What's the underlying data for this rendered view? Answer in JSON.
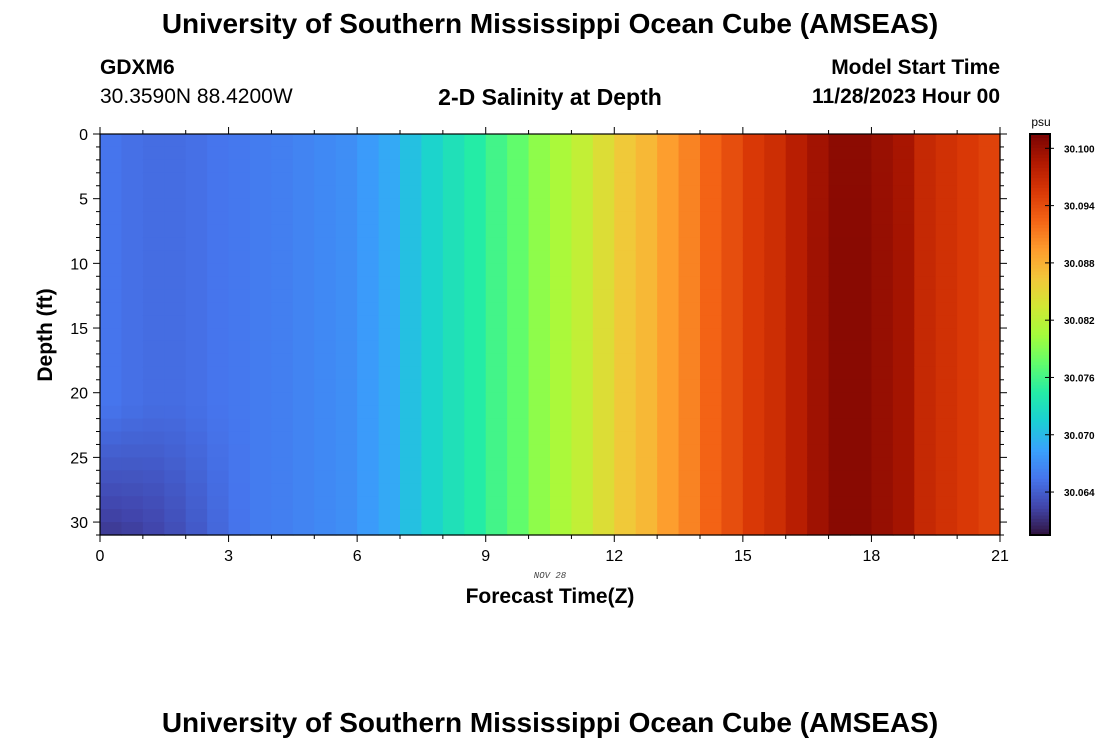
{
  "header": {
    "title": "University of Southern Mississippi Ocean Cube (AMSEAS)",
    "station": "GDXM6",
    "coordinates": "30.3590N  88.4200W",
    "subtitle": "2-D Salinity at Depth",
    "start_label": "Model Start Time",
    "start_value": "11/28/2023 Hour 00"
  },
  "footer": {
    "title": "University of Southern Mississippi Ocean Cube (AMSEAS)"
  },
  "chart_data": {
    "type": "heatmap",
    "xlabel": "Forecast Time(Z)",
    "ylabel": "Depth (ft)",
    "date_label": "NOV 28",
    "xlim": [
      0,
      21
    ],
    "ylim": [
      0,
      31
    ],
    "y_inverted": true,
    "xticks": [
      0,
      3,
      6,
      9,
      12,
      15,
      18,
      21
    ],
    "yticks": [
      0,
      5,
      10,
      15,
      20,
      25,
      30
    ],
    "x": [
      0.25,
      0.75,
      1.25,
      1.75,
      2.25,
      2.75,
      3.25,
      3.75,
      4.25,
      4.75,
      5.25,
      5.75,
      6.25,
      6.75,
      7.25,
      7.75,
      8.25,
      8.75,
      9.25,
      9.75,
      10.25,
      10.75,
      11.25,
      11.75,
      12.25,
      12.75,
      13.25,
      13.75,
      14.25,
      14.75,
      15.25,
      15.75,
      16.25,
      16.75,
      17.25,
      17.75,
      18.25,
      18.75,
      19.25,
      19.75,
      20.25,
      20.75
    ],
    "surface_salinity": [
      30.0655,
      30.0652,
      30.065,
      30.065,
      30.0652,
      30.0655,
      30.0657,
      30.066,
      30.0662,
      30.0665,
      30.0668,
      30.0672,
      30.068,
      30.069,
      30.0705,
      30.072,
      30.0733,
      30.0745,
      30.076,
      30.0775,
      30.0795,
      30.081,
      30.0825,
      30.0845,
      30.0862,
      30.0875,
      30.0893,
      30.0908,
      30.0925,
      30.094,
      30.0955,
      30.0965,
      30.098,
      30.0993,
      30.1005,
      30.1005,
      30.0998,
      30.099,
      30.097,
      30.0962,
      30.0955,
      30.0948
    ],
    "near_bottom_offset": {
      "depth_start": 21,
      "depth_end": 31,
      "x_end": 3.5,
      "max_drop": 0.004
    },
    "colorbar": {
      "label": "psu",
      "min": 30.0595,
      "max": 30.1015,
      "ticks": [
        30.064,
        30.07,
        30.076,
        30.082,
        30.088,
        30.094,
        30.1
      ],
      "tick_labels": [
        "30.064",
        "30.070",
        "30.076",
        "30.082",
        "30.088",
        "30.094",
        "30.100"
      ],
      "colormap": [
        "#30123b",
        "#4145ab",
        "#4675ed",
        "#39a2fc",
        "#1bcfd4",
        "#24eca6",
        "#61fc6c",
        "#a4fc3b",
        "#d1e834",
        "#f3c63a",
        "#fe9b2d",
        "#f36315",
        "#d93806",
        "#b11901",
        "#7a0403"
      ]
    }
  }
}
